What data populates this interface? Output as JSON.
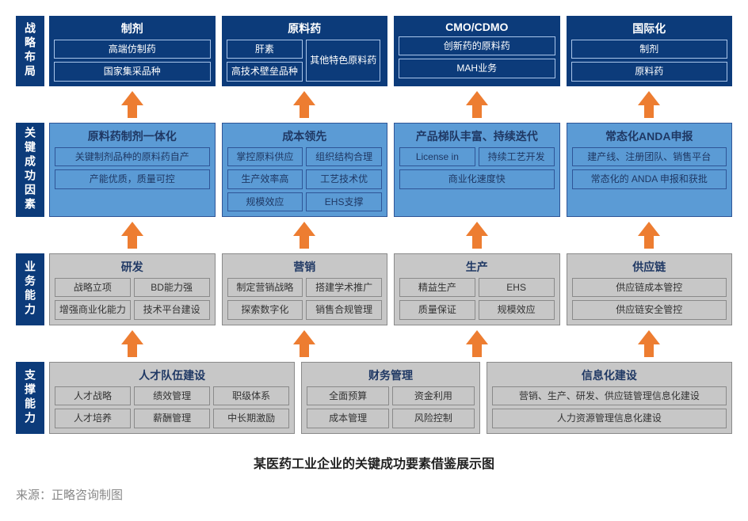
{
  "colors": {
    "navy": "#0c3b7a",
    "blue": "#5b9bd5",
    "grey": "#c7c7c7",
    "arrow": "#ed7d31",
    "side_grey": "#989898"
  },
  "rows": [
    {
      "side": "战略布局",
      "side_bg": "#0c3b7a",
      "panel_style": "navy",
      "panels": [
        {
          "title": "制剂",
          "items": [
            "高端仿制药",
            "国家集采品种"
          ],
          "layout": "one"
        },
        {
          "title": "原料药",
          "items_left": [
            "肝素",
            "高技术壁垒品种"
          ],
          "items_right": [
            "其他特色原料药"
          ],
          "layout": "api"
        },
        {
          "title": "CMO/CDMO",
          "items": [
            "创新药的原料药",
            "MAH业务"
          ],
          "layout": "one"
        },
        {
          "title": "国际化",
          "items": [
            "制剂",
            "原料药"
          ],
          "layout": "one"
        }
      ]
    },
    {
      "side": "关键成功因素",
      "side_bg": "#0c3b7a",
      "panel_style": "blue",
      "panels": [
        {
          "title": "原料药制剂一体化",
          "items": [
            "关键制剂品种的原料药自产",
            "产能优质，质量可控"
          ],
          "layout": "one"
        },
        {
          "title": "成本领先",
          "items": [
            "掌控原料供应",
            "组织结构合理",
            "生产效率高",
            "工艺技术优",
            "规模效应",
            "EHS支撑"
          ],
          "layout": "two"
        },
        {
          "title": "产品梯队丰富、持续迭代",
          "items": [
            "License in",
            "持续工艺开发",
            "商业化速度快"
          ],
          "layout": "two-last-wide"
        },
        {
          "title": "常态化ANDA申报",
          "items": [
            "建产线、注册团队、销售平台",
            "常态化的 ANDA 申报和获批"
          ],
          "layout": "one"
        }
      ]
    },
    {
      "side": "业务能力",
      "side_bg": "#0c3b7a",
      "panel_style": "grey",
      "panels": [
        {
          "title": "研发",
          "items": [
            "战略立项",
            "BD能力强",
            "增强商业化能力",
            "技术平台建设"
          ],
          "layout": "two"
        },
        {
          "title": "营销",
          "items": [
            "制定营销战略",
            "搭建学术推广",
            "探索数字化",
            "销售合规管理"
          ],
          "layout": "two"
        },
        {
          "title": "生产",
          "items": [
            "精益生产",
            "EHS",
            "质量保证",
            "规模效应"
          ],
          "layout": "two"
        },
        {
          "title": "供应链",
          "items": [
            "供应链成本管控",
            "供应链安全管控"
          ],
          "layout": "one"
        }
      ]
    },
    {
      "side": "支撑能力",
      "side_bg": "#0c3b7a",
      "panel_style": "grey",
      "panels": [
        {
          "title": "人才队伍建设",
          "flex": 1.4,
          "items": [
            "人才战略",
            "绩效管理",
            "职级体系",
            "人才培养",
            "薪酬管理",
            "中长期激励"
          ],
          "layout": "three"
        },
        {
          "title": "财务管理",
          "flex": 1,
          "items": [
            "全面预算",
            "资金利用",
            "成本管理",
            "风险控制"
          ],
          "layout": "two"
        },
        {
          "title": "信息化建设",
          "flex": 1.4,
          "items": [
            "营销、生产、研发、供应链管理信息化建设",
            "人力资源管理信息化建设"
          ],
          "layout": "one"
        }
      ]
    }
  ],
  "caption": "某医药工业企业的关键成功要素借鉴展示图",
  "source": "来源：正略咨询制图"
}
